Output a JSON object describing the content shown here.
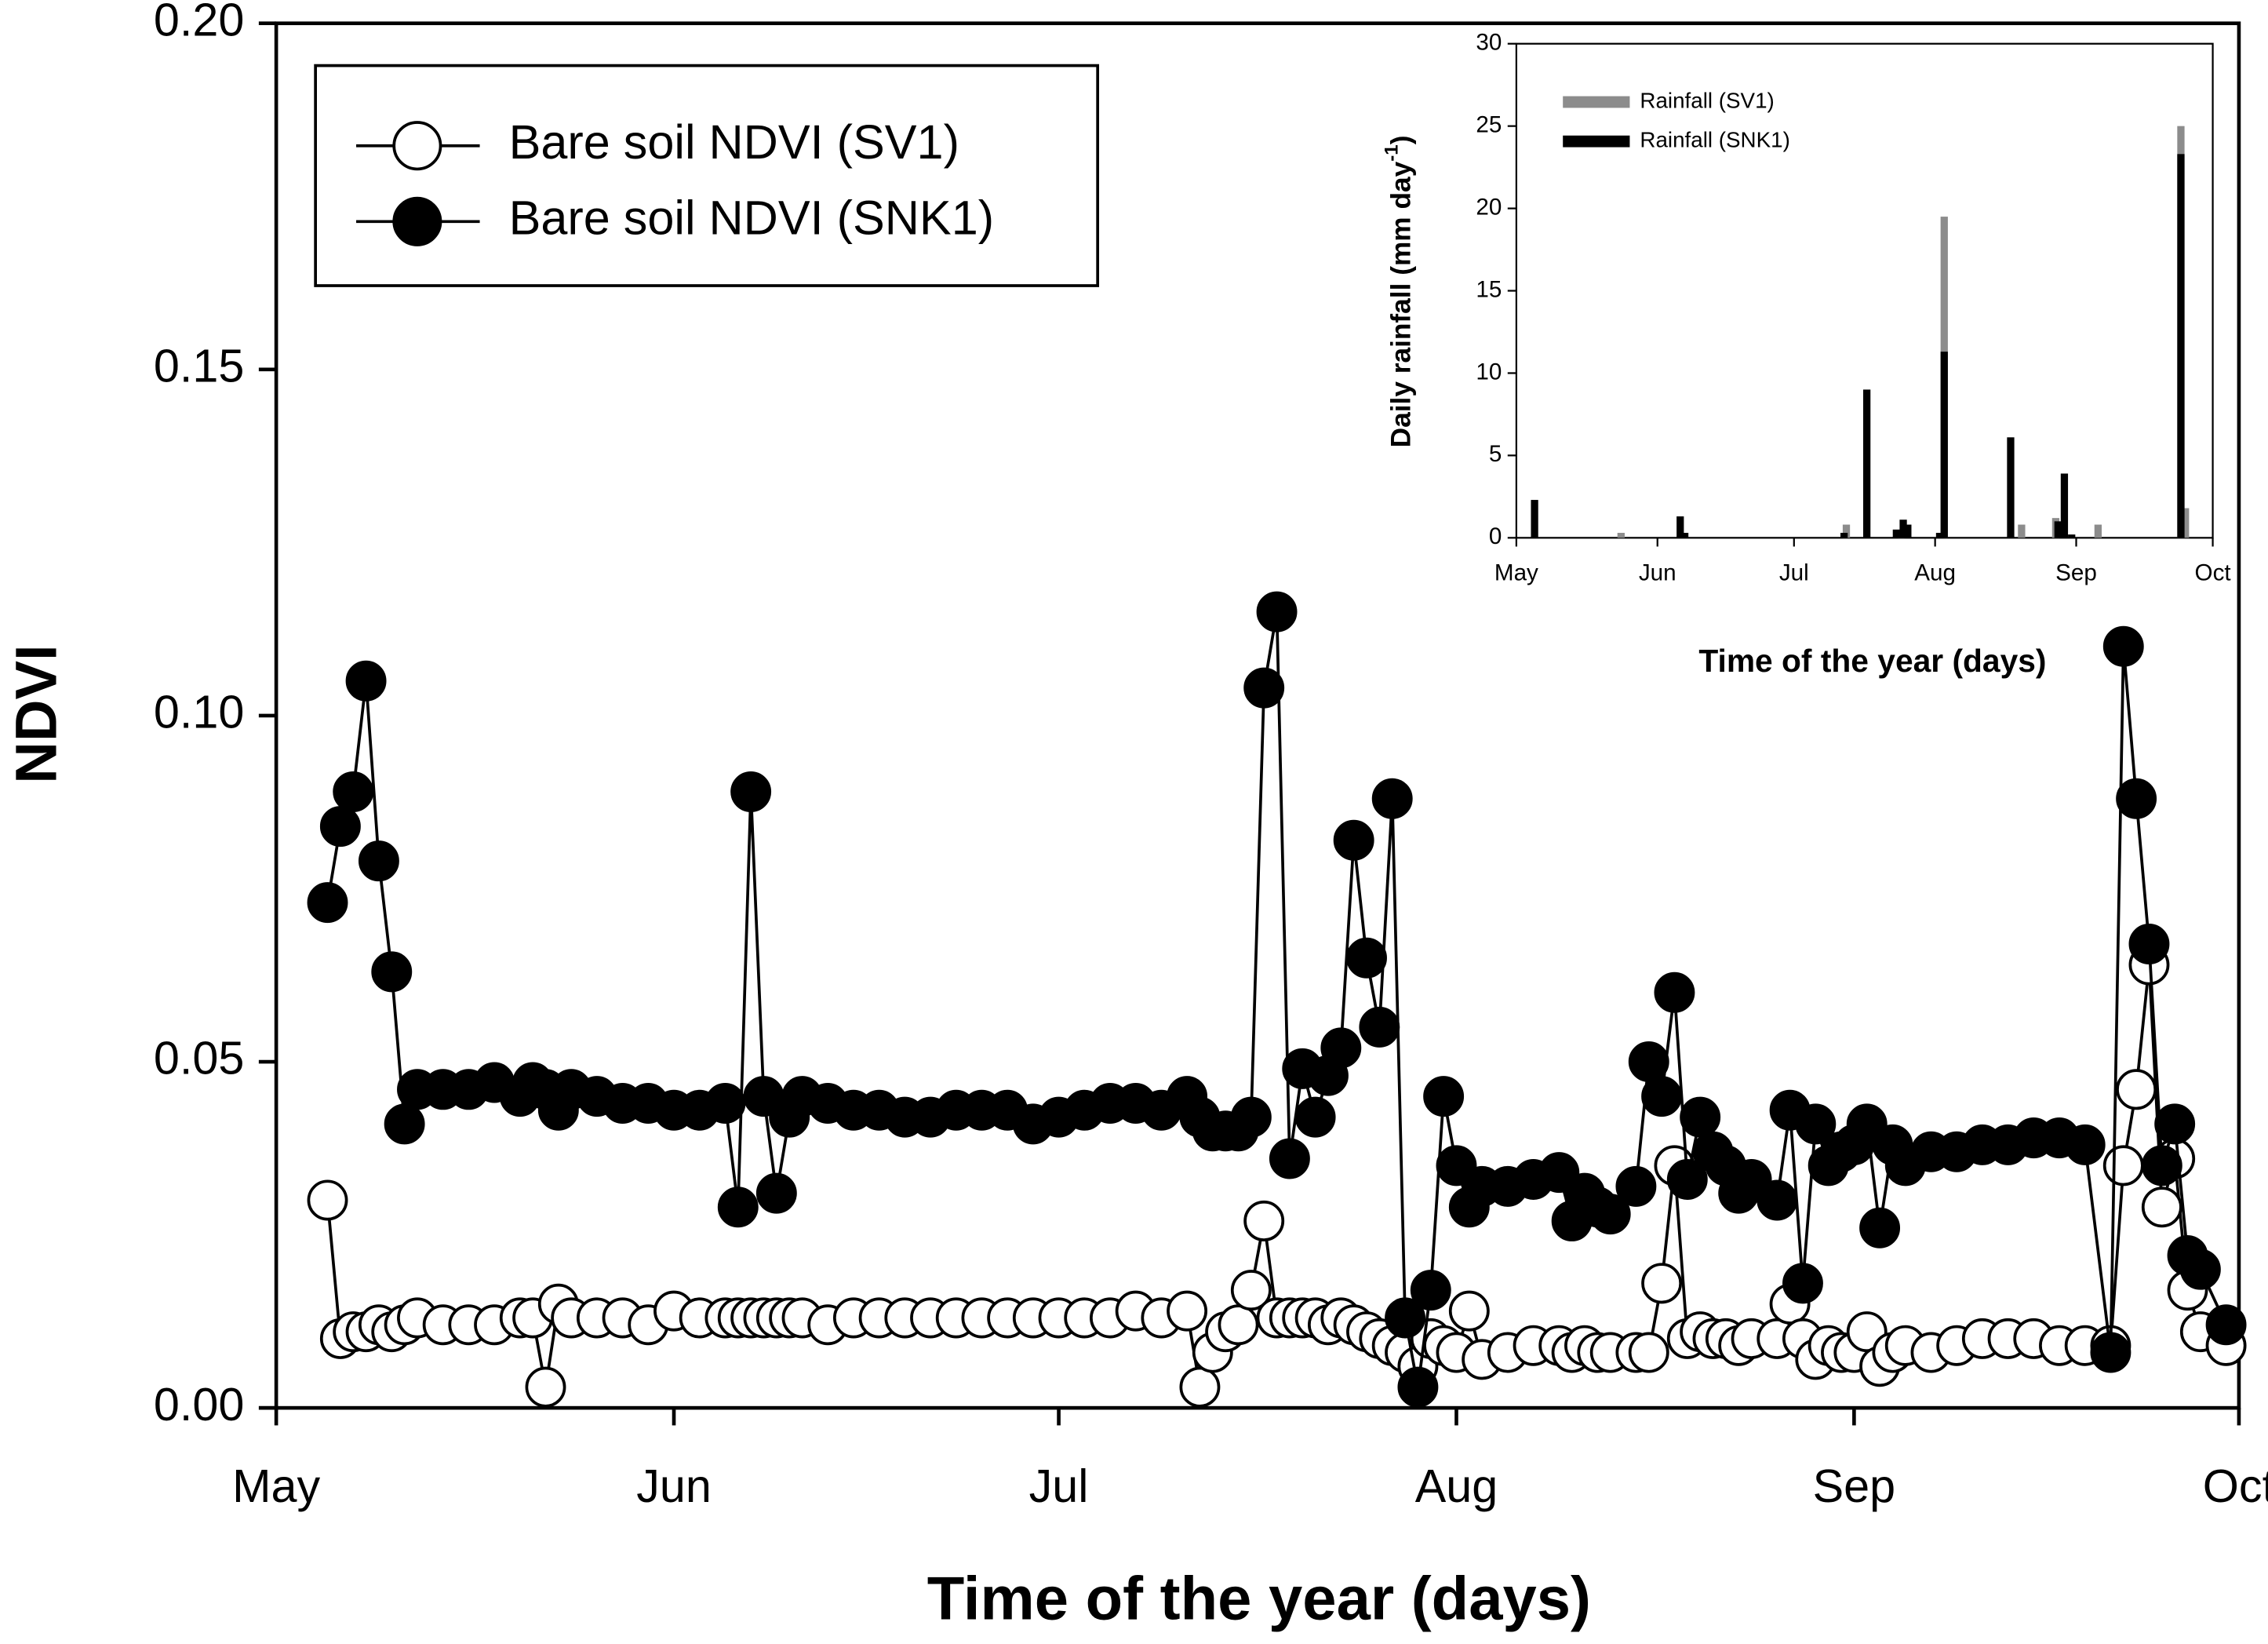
{
  "chart_data": [
    {
      "type": "line",
      "x_label": "Time of the year (days)",
      "y_label": "NDVI",
      "xlim": [
        0,
        153
      ],
      "xticks": [
        {
          "value": 0,
          "label": "May"
        },
        {
          "value": 31,
          "label": "Jun"
        },
        {
          "value": 61,
          "label": "Jul"
        },
        {
          "value": 92,
          "label": "Aug"
        },
        {
          "value": 123,
          "label": "Sep"
        },
        {
          "value": 153,
          "label": "Oct"
        }
      ],
      "ylim": [
        0,
        0.2
      ],
      "yticks": [
        {
          "value": 0,
          "label": "0.00"
        },
        {
          "value": 0.05,
          "label": "0.05"
        },
        {
          "value": 0.1,
          "label": "0.10"
        },
        {
          "value": 0.15,
          "label": "0.15"
        },
        {
          "value": 0.2,
          "label": "0.20"
        }
      ],
      "legend": "upper left",
      "x": [
        4,
        5,
        6,
        7,
        8,
        9,
        10,
        11,
        13,
        15,
        17,
        19,
        20,
        21,
        22,
        23,
        25,
        27,
        29,
        31,
        33,
        35,
        36,
        37,
        38,
        39,
        40,
        41,
        43,
        45,
        47,
        49,
        51,
        53,
        55,
        57,
        59,
        61,
        63,
        65,
        67,
        69,
        71,
        72,
        73,
        74,
        75,
        76,
        77,
        78,
        79,
        80,
        81,
        82,
        83,
        84,
        85,
        86,
        87,
        88,
        89,
        90,
        91,
        92,
        93,
        94,
        96,
        98,
        100,
        101,
        102,
        103,
        104,
        106,
        107,
        108,
        109,
        110,
        111,
        112,
        113,
        114,
        115,
        117,
        118,
        119,
        120,
        121,
        122,
        123,
        124,
        125,
        126,
        127,
        129,
        131,
        133,
        135,
        137,
        139,
        141,
        143,
        144,
        145,
        146,
        147,
        148,
        149,
        150,
        152
      ],
      "series": [
        {
          "name": "Bare soil NDVI (SV1)",
          "color": "#ffffff",
          "values": [
            0.03,
            0.01,
            0.011,
            0.011,
            0.012,
            0.011,
            0.012,
            0.013,
            0.012,
            0.012,
            0.012,
            0.013,
            0.013,
            0.003,
            0.015,
            0.013,
            0.013,
            0.013,
            0.012,
            0.014,
            0.013,
            0.013,
            0.013,
            0.013,
            0.013,
            0.013,
            0.013,
            0.013,
            0.012,
            0.013,
            0.013,
            0.013,
            0.013,
            0.013,
            0.013,
            0.013,
            0.013,
            0.013,
            0.013,
            0.013,
            0.014,
            0.013,
            0.014,
            0.003,
            0.008,
            0.011,
            0.012,
            0.017,
            0.027,
            0.013,
            0.013,
            0.013,
            0.013,
            0.012,
            0.013,
            0.012,
            0.011,
            0.01,
            0.009,
            0.008,
            0.006,
            0.01,
            0.009,
            0.008,
            0.014,
            0.007,
            0.008,
            0.009,
            0.009,
            0.008,
            0.009,
            0.008,
            0.008,
            0.008,
            0.008,
            0.018,
            0.035,
            0.01,
            0.011,
            0.01,
            0.01,
            0.009,
            0.01,
            0.01,
            0.015,
            0.01,
            0.007,
            0.009,
            0.008,
            0.008,
            0.011,
            0.006,
            0.008,
            0.009,
            0.008,
            0.009,
            0.01,
            0.01,
            0.01,
            0.009,
            0.009,
            0.009,
            0.035,
            0.046,
            0.064,
            0.029,
            0.036,
            0.017,
            0.011,
            0.009
          ]
        },
        {
          "name": "Bare soil NDVI (SNK1)",
          "color": "#000000",
          "values": [
            0.073,
            0.084,
            0.089,
            0.105,
            0.079,
            0.063,
            0.041,
            0.046,
            0.046,
            0.046,
            0.047,
            0.045,
            0.047,
            0.046,
            0.043,
            0.046,
            0.045,
            0.044,
            0.044,
            0.043,
            0.043,
            0.044,
            0.029,
            0.089,
            0.045,
            0.031,
            0.042,
            0.045,
            0.044,
            0.043,
            0.043,
            0.042,
            0.042,
            0.043,
            0.043,
            0.043,
            0.041,
            0.042,
            0.043,
            0.044,
            0.044,
            0.043,
            0.045,
            0.042,
            0.04,
            0.04,
            0.04,
            0.042,
            0.104,
            0.115,
            0.036,
            0.049,
            0.042,
            0.048,
            0.052,
            0.082,
            0.065,
            0.055,
            0.088,
            0.013,
            0.003,
            0.017,
            0.045,
            0.035,
            0.029,
            0.032,
            0.032,
            0.033,
            0.034,
            0.027,
            0.031,
            0.029,
            0.028,
            0.032,
            0.05,
            0.045,
            0.06,
            0.033,
            0.042,
            0.037,
            0.035,
            0.031,
            0.033,
            0.03,
            0.043,
            0.018,
            0.041,
            0.035,
            0.037,
            0.038,
            0.041,
            0.026,
            0.038,
            0.035,
            0.037,
            0.037,
            0.038,
            0.038,
            0.039,
            0.039,
            0.038,
            0.008,
            0.11,
            0.088,
            0.067,
            0.035,
            0.041,
            0.022,
            0.02,
            0.012
          ]
        }
      ]
    },
    {
      "type": "bar",
      "x_label": "Time of the year (days)",
      "y_label": "Daily rainfall (mm day",
      "y_label_sup": "-1",
      "y_label_end": ")",
      "xlim": [
        0,
        153
      ],
      "xticks": [
        {
          "value": 0,
          "label": "May"
        },
        {
          "value": 31,
          "label": "Jun"
        },
        {
          "value": 61,
          "label": "Jul"
        },
        {
          "value": 92,
          "label": "Aug"
        },
        {
          "value": 123,
          "label": "Sep"
        },
        {
          "value": 153,
          "label": "Oct"
        }
      ],
      "ylim": [
        0,
        30
      ],
      "yticks": [
        0,
        5,
        10,
        15,
        20,
        25,
        30
      ],
      "legend": "upper left",
      "series": [
        {
          "name": "Rainfall (SV1)",
          "color": "#8c8c8c",
          "x": [
            23,
            72.5,
            84.7,
            94,
            111,
            118.5,
            127.8,
            146,
            147
          ],
          "values": [
            0.3,
            0.8,
            0.5,
            19.5,
            0.8,
            1.2,
            0.8,
            25,
            1.8
          ]
        },
        {
          "name": "Rainfall  (SNK1)",
          "color": "#000000",
          "x": [
            4,
            36,
            37,
            72,
            77,
            83.5,
            85,
            86,
            93,
            94,
            108.6,
            119,
            120.4,
            122,
            146
          ],
          "values": [
            2.3,
            1.3,
            0.3,
            0.3,
            9,
            0.5,
            1.1,
            0.8,
            0.3,
            11.3,
            6.1,
            1,
            3.9,
            0.2,
            23.3
          ]
        }
      ]
    }
  ]
}
